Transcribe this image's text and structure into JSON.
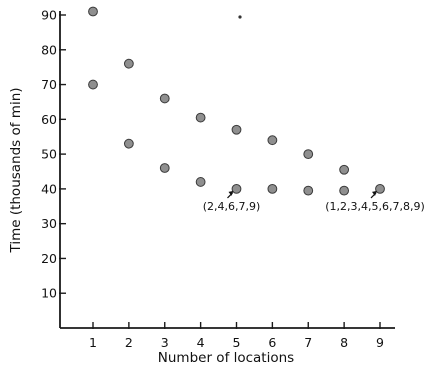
{
  "chart_data": {
    "type": "scatter",
    "xlabel": "Number of locations",
    "ylabel": "Time (thousands of min)",
    "xlim": [
      0,
      9.5
    ],
    "ylim": [
      0,
      90
    ],
    "xticks": [
      "1",
      "2",
      "3",
      "4",
      "5",
      "6",
      "7",
      "8",
      "9"
    ],
    "yticks": [
      "10",
      "20",
      "30",
      "40",
      "50",
      "60",
      "70",
      "80",
      "90"
    ],
    "grid": false,
    "series": [
      {
        "values": [
          {
            "x": 1,
            "y": 91
          },
          {
            "x": 2,
            "y": 76
          },
          {
            "x": 3,
            "y": 66
          },
          {
            "x": 4,
            "y": 60.5
          },
          {
            "x": 5,
            "y": 57
          },
          {
            "x": 6,
            "y": 54
          },
          {
            "x": 7,
            "y": 50
          },
          {
            "x": 8,
            "y": 45.5
          },
          {
            "x": 9,
            "y": 40
          }
        ]
      },
      {
        "values": [
          {
            "x": 1,
            "y": 70
          },
          {
            "x": 2,
            "y": 53
          },
          {
            "x": 3,
            "y": 46
          },
          {
            "x": 4,
            "y": 42
          },
          {
            "x": 5,
            "y": 40
          },
          {
            "x": 6,
            "y": 40
          },
          {
            "x": 7,
            "y": 39.5
          },
          {
            "x": 8,
            "y": 39.5
          }
        ]
      }
    ],
    "annotations": [
      {
        "text": "(2,4,6,7,9)",
        "x": 5,
        "y": 40
      },
      {
        "text": "(1,2,3,4,5,6,7,8,9)",
        "x": 9,
        "y": 40
      }
    ]
  }
}
